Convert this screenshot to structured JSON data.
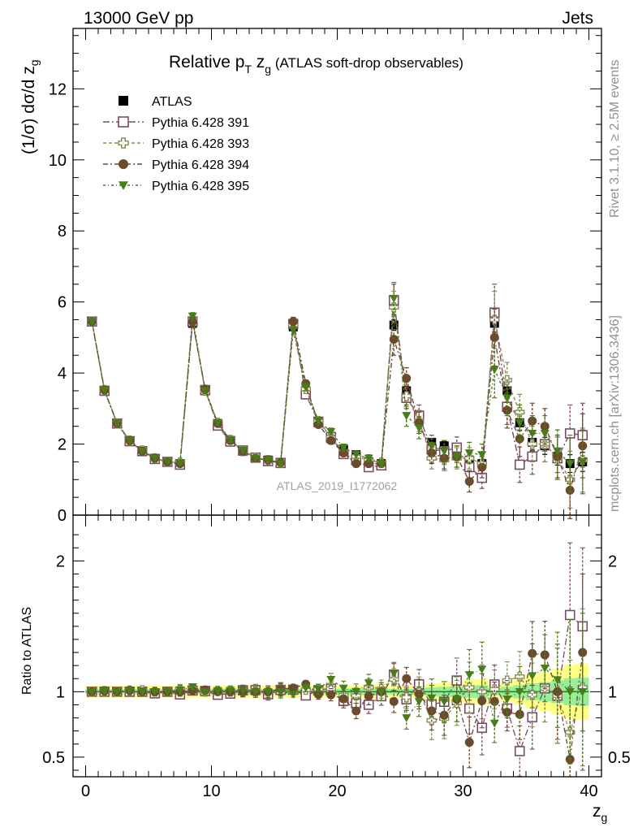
{
  "header": {
    "left": "13000 GeV pp",
    "right": "Jets"
  },
  "side_labels": {
    "rivet": "Rivet 3.1.10, ≥ 2.5M events",
    "mcplots": "mcplots.cern.ch [arXiv:1306.3436]"
  },
  "watermark": "ATLAS_2019_I1772062",
  "colors": {
    "atlas": "#000000",
    "p391": "#7a4b63",
    "p393": "#8b8a58",
    "p394": "#6b4a2e",
    "p395": "#4a7c1a",
    "band_outer": "#ffff88",
    "band_inner": "#99ee99",
    "ratio_line": "#1a8c1a"
  },
  "chart_data": [
    {
      "type": "scatter",
      "panel": "main",
      "title": "Relative p_T z_g (ATLAS soft-drop observables)",
      "title_parts": {
        "main": "Relative p",
        "sub_t": "T",
        "var": " z",
        "sub_g": "g",
        "rest": " (ATLAS soft-drop observables)"
      },
      "ylabel": "(1/σ) dσ/d z_g",
      "ylabel_parts": {
        "main": "(1/σ) dσ/d z",
        "sub": "g"
      },
      "xlabel": "z_g",
      "xlim": [
        -1,
        41
      ],
      "ylim": [
        0,
        13.7
      ],
      "xticks": [
        0,
        10,
        20,
        30,
        40
      ],
      "yticks": [
        0,
        2,
        4,
        6,
        8,
        10,
        12
      ],
      "yticklabels": [
        "0",
        "2",
        "4",
        "6",
        "8",
        "10",
        "12"
      ],
      "legend_position": "top-left",
      "x": [
        0.5,
        1.5,
        2.5,
        3.5,
        4.5,
        5.5,
        6.5,
        7.5,
        8.5,
        9.5,
        10.5,
        11.5,
        12.5,
        13.5,
        14.5,
        15.5,
        16.5,
        17.5,
        18.5,
        19.5,
        20.5,
        21.5,
        22.5,
        23.5,
        24.5,
        25.5,
        26.5,
        27.5,
        28.5,
        29.5,
        30.5,
        31.5,
        32.5,
        33.5,
        34.5,
        35.5,
        36.5,
        37.5,
        38.5,
        39.5
      ],
      "series": [
        {
          "name": "ATLAS",
          "marker": "square-filled",
          "values": [
            5.45,
            3.5,
            2.58,
            2.08,
            1.8,
            1.6,
            1.5,
            1.45,
            5.4,
            3.5,
            2.58,
            2.1,
            1.8,
            1.6,
            1.55,
            1.45,
            5.3,
            3.5,
            2.6,
            2.15,
            1.85,
            1.7,
            1.5,
            1.45,
            5.35,
            3.5,
            2.65,
            2.05,
            1.95,
            1.75,
            1.55,
            1.45,
            5.4,
            3.5,
            2.6,
            2.05,
            1.95,
            1.65,
            1.45,
            1.5
          ],
          "errors": [
            0.05,
            0.05,
            0.04,
            0.04,
            0.04,
            0.04,
            0.04,
            0.04,
            0.08,
            0.06,
            0.05,
            0.05,
            0.05,
            0.05,
            0.05,
            0.05,
            0.1,
            0.08,
            0.07,
            0.07,
            0.07,
            0.07,
            0.07,
            0.07,
            0.15,
            0.12,
            0.11,
            0.11,
            0.12,
            0.12,
            0.12,
            0.12,
            0.25,
            0.22,
            0.22,
            0.22,
            0.24,
            0.24,
            0.25,
            0.27
          ]
        },
        {
          "name": "Pythia 6.428 391",
          "marker": "square-open",
          "values": [
            5.45,
            3.5,
            2.58,
            2.08,
            1.8,
            1.58,
            1.5,
            1.42,
            5.45,
            3.52,
            2.52,
            2.07,
            1.82,
            1.62,
            1.52,
            1.47,
            5.38,
            3.4,
            2.63,
            2.2,
            1.72,
            1.55,
            1.35,
            1.4,
            6.05,
            3.3,
            2.8,
            1.85,
            1.8,
            1.9,
            1.35,
            1.05,
            5.7,
            3.05,
            1.42,
            1.65,
            2.0,
            1.6,
            2.3,
            2.25
          ],
          "errors": [
            0.05,
            0.05,
            0.05,
            0.05,
            0.05,
            0.05,
            0.05,
            0.05,
            0.1,
            0.08,
            0.07,
            0.07,
            0.07,
            0.07,
            0.07,
            0.07,
            0.12,
            0.1,
            0.1,
            0.1,
            0.1,
            0.1,
            0.1,
            0.1,
            0.45,
            0.3,
            0.3,
            0.3,
            0.3,
            0.3,
            0.3,
            0.3,
            0.8,
            0.5,
            0.5,
            0.5,
            0.5,
            0.6,
            0.8,
            0.9
          ]
        },
        {
          "name": "Pythia 6.428 393",
          "marker": "plus-open",
          "values": [
            5.45,
            3.52,
            2.58,
            2.1,
            1.82,
            1.6,
            1.5,
            1.48,
            5.5,
            3.5,
            2.6,
            2.12,
            1.8,
            1.62,
            1.55,
            1.48,
            5.35,
            3.55,
            2.65,
            2.2,
            1.8,
            1.65,
            1.55,
            1.48,
            5.85,
            3.35,
            2.65,
            1.6,
            1.55,
            1.6,
            1.6,
            1.45,
            5.5,
            3.8,
            2.9,
            2.0,
            2.0,
            1.6,
            1.0,
            1.55
          ],
          "errors": [
            0.05,
            0.05,
            0.05,
            0.05,
            0.05,
            0.05,
            0.05,
            0.05,
            0.1,
            0.08,
            0.07,
            0.07,
            0.07,
            0.07,
            0.07,
            0.07,
            0.12,
            0.1,
            0.1,
            0.1,
            0.1,
            0.1,
            0.1,
            0.1,
            0.45,
            0.3,
            0.3,
            0.3,
            0.3,
            0.3,
            0.3,
            0.3,
            0.8,
            0.5,
            0.5,
            0.5,
            0.5,
            0.6,
            0.8,
            0.9
          ]
        },
        {
          "name": "Pythia 6.428 394",
          "marker": "circle-filled",
          "values": [
            5.45,
            3.52,
            2.58,
            2.1,
            1.8,
            1.6,
            1.5,
            1.45,
            5.45,
            3.55,
            2.58,
            2.1,
            1.8,
            1.6,
            1.55,
            1.48,
            5.45,
            3.7,
            2.55,
            2.1,
            1.75,
            1.45,
            1.45,
            1.45,
            4.95,
            3.85,
            2.6,
            1.75,
            1.6,
            1.65,
            0.95,
            1.35,
            5.0,
            2.95,
            2.15,
            2.65,
            2.5,
            1.65,
            0.7,
            1.95
          ],
          "errors": [
            0.05,
            0.05,
            0.05,
            0.05,
            0.05,
            0.05,
            0.05,
            0.05,
            0.1,
            0.08,
            0.07,
            0.07,
            0.07,
            0.07,
            0.07,
            0.07,
            0.12,
            0.1,
            0.1,
            0.1,
            0.1,
            0.1,
            0.1,
            0.1,
            0.45,
            0.3,
            0.3,
            0.3,
            0.3,
            0.3,
            0.3,
            0.3,
            0.8,
            0.5,
            0.5,
            0.5,
            0.5,
            0.6,
            0.8,
            0.9
          ]
        },
        {
          "name": "Pythia 6.428 395",
          "marker": "triangle-down",
          "values": [
            5.45,
            3.52,
            2.58,
            2.1,
            1.8,
            1.6,
            1.5,
            1.47,
            5.6,
            3.5,
            2.6,
            2.12,
            1.82,
            1.6,
            1.55,
            1.45,
            5.2,
            3.6,
            2.65,
            2.35,
            1.9,
            1.7,
            1.6,
            1.45,
            6.1,
            2.8,
            2.45,
            1.95,
            1.8,
            1.65,
            1.75,
            1.7,
            4.1,
            3.3,
            2.6,
            2.3,
            2.3,
            1.8,
            1.45,
            1.5
          ],
          "errors": [
            0.05,
            0.05,
            0.05,
            0.05,
            0.05,
            0.05,
            0.05,
            0.05,
            0.1,
            0.08,
            0.07,
            0.07,
            0.07,
            0.07,
            0.07,
            0.07,
            0.12,
            0.1,
            0.1,
            0.1,
            0.1,
            0.1,
            0.1,
            0.1,
            0.45,
            0.3,
            0.3,
            0.3,
            0.3,
            0.3,
            0.3,
            0.3,
            0.8,
            0.5,
            0.5,
            0.5,
            0.5,
            0.6,
            0.8,
            0.9
          ]
        }
      ]
    },
    {
      "type": "scatter",
      "panel": "ratio",
      "ylabel": "Ratio to ATLAS",
      "xlabel": "z_g",
      "ylim": [
        0.35,
        2.35
      ],
      "yticks": [
        0.5,
        1,
        2
      ],
      "yticklabels": [
        "0.5",
        "1",
        "2"
      ],
      "reference": 1,
      "note": "ratio values are each Pythia series divided by ATLAS"
    }
  ]
}
